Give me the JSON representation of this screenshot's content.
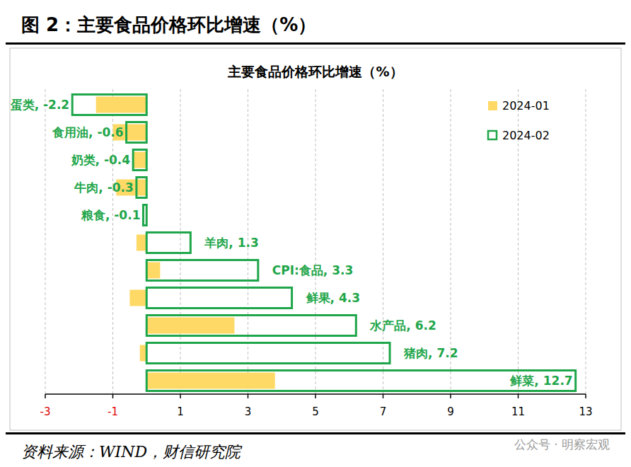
{
  "figure_title": "图 2：主要食品价格环比增速（%）",
  "source": "资料来源：WIND，财信研究院",
  "watermark": "公众号 · 明察宏观",
  "chart_data": {
    "type": "bar",
    "orientation": "horizontal",
    "title": "主要食品价格环比增速（%）",
    "categories": [
      "蛋类",
      "食用油",
      "奶类",
      "牛肉",
      "粮食",
      "羊肉",
      "CPI:食品",
      "鲜果",
      "水产品",
      "猪肉",
      "鲜菜"
    ],
    "series": [
      {
        "name": "2024-01",
        "color": "#ffd966",
        "values": [
          -1.5,
          -1.0,
          -0.4,
          -0.9,
          0,
          -0.3,
          0.4,
          -0.5,
          2.6,
          -0.2,
          3.8
        ]
      },
      {
        "name": "2024-02",
        "color": "#1fa64a",
        "data_labels": true,
        "values": [
          -2.2,
          -0.6,
          -0.4,
          -0.3,
          -0.1,
          1.3,
          3.3,
          4.3,
          6.2,
          7.2,
          12.7
        ],
        "value_labels": [
          "蛋类, -2.2",
          "食用油, -0.6",
          "奶类, -0.4",
          "牛肉, -0.3",
          "粮食, -0.1",
          "羊肉, 1.3",
          "CPI:食品, 3.3",
          "鲜果, 4.3",
          "水产品, 6.2",
          "猪肉, 7.2",
          "鲜菜, 12.7"
        ]
      }
    ],
    "xlim": [
      -3,
      13
    ],
    "xticks": [
      -3,
      -1,
      1,
      3,
      5,
      7,
      9,
      11,
      13
    ],
    "grid": true,
    "legend": "upper right",
    "tick_labels": "x"
  }
}
